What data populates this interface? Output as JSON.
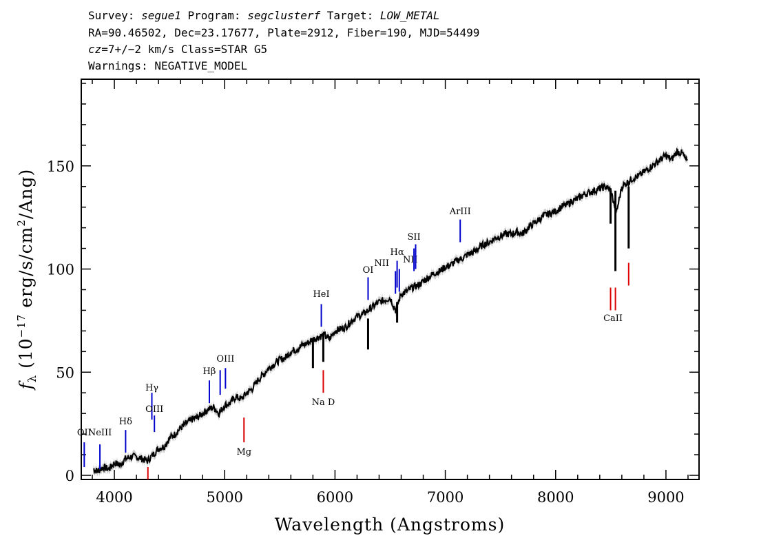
{
  "header": {
    "line1": {
      "pre1": "Survey: ",
      "survey": "segue1",
      "pre2": " Program: ",
      "program": "segclusterf",
      "pre3": " Target: ",
      "target": "LOW_METAL"
    },
    "line2": "RA=90.46502, Dec=23.17677, Plate=2912, Fiber=190, MJD=54499",
    "line3": {
      "cz": "cz",
      "rest": "=7+/−2 km/s Class=STAR G5"
    },
    "line4": "Warnings: NEGATIVE_MODEL"
  },
  "colors": {
    "emission": "#0000cc",
    "absorption": "#dd0000",
    "spectrum": "#000000",
    "error_band": "#aaaaaa"
  },
  "chart_data": {
    "type": "line",
    "xlabel": "Wavelength (Angstroms)",
    "ylabel_parts": {
      "f": "f",
      "sub": "λ",
      "mid": " (10",
      "exp": "−17",
      "unit": " erg/s/cm",
      "exp2": "2",
      "tail": "/Ang)"
    },
    "xlim": [
      3700,
      9300
    ],
    "ylim": [
      -2,
      192
    ],
    "x_ticks": [
      4000,
      5000,
      6000,
      7000,
      8000,
      9000
    ],
    "y_ticks": [
      0,
      50,
      100,
      150
    ],
    "series": [
      {
        "x": [
          3810,
          3850,
          3900,
          3950,
          4000,
          4050,
          4100,
          4150,
          4200,
          4250,
          4300,
          4350,
          4400,
          4450,
          4500,
          4550,
          4600,
          4650,
          4700,
          4750,
          4800,
          4850,
          4900,
          4950,
          5000,
          5050,
          5100,
          5150,
          5200,
          5250,
          5300,
          5350,
          5400,
          5450,
          5500,
          5550,
          5600,
          5650,
          5700,
          5750,
          5800,
          5850,
          5900,
          5950,
          6000,
          6050,
          6100,
          6150,
          6200,
          6250,
          6300,
          6350,
          6400,
          6450,
          6500,
          6550,
          6600,
          6650,
          6700,
          6750,
          6800,
          6850,
          6900,
          6950,
          7000,
          7050,
          7100,
          7150,
          7200,
          7250,
          7300,
          7350,
          7400,
          7450,
          7500,
          7550,
          7600,
          7650,
          7700,
          7750,
          7800,
          7850,
          7900,
          7950,
          8000,
          8050,
          8100,
          8150,
          8200,
          8250,
          8300,
          8350,
          8400,
          8450,
          8500,
          8550,
          8600,
          8650,
          8700,
          8750,
          8800,
          8850,
          8900,
          8950,
          9000,
          9050,
          9100,
          9150,
          9200
        ],
        "y": [
          3,
          2,
          4,
          3,
          6,
          5,
          8,
          9,
          9,
          8,
          7,
          10,
          13,
          14,
          18,
          20,
          23,
          25,
          27,
          28,
          30,
          32,
          33,
          30,
          34,
          35,
          38,
          37,
          40,
          42,
          46,
          49,
          52,
          54,
          56,
          57,
          60,
          61,
          63,
          64,
          66,
          67,
          68,
          66,
          70,
          71,
          72,
          75,
          77,
          78,
          80,
          82,
          84,
          85,
          86,
          80,
          88,
          89,
          91,
          92,
          94,
          96,
          98,
          99,
          101,
          102,
          104,
          105,
          107,
          108,
          110,
          112,
          113,
          115,
          116,
          117,
          117,
          118,
          117,
          120,
          122,
          124,
          126,
          127,
          128,
          130,
          131,
          133,
          134,
          136,
          137,
          138,
          139,
          140,
          138,
          127,
          140,
          142,
          144,
          145,
          147,
          149,
          151,
          153,
          155,
          153,
          157,
          156,
          151
        ]
      }
    ],
    "emission_lines": [
      {
        "label": "OII",
        "wave": 3727
      },
      {
        "label": "NeIII",
        "wave": 3869
      },
      {
        "label": "Hδ",
        "wave": 4102
      },
      {
        "label": "Hγ",
        "wave": 4340
      },
      {
        "label": "OIII",
        "wave": 4363
      },
      {
        "label": "Hβ",
        "wave": 4861
      },
      {
        "label": "OIII",
        "wave": 4959
      },
      {
        "label": "OIII",
        "wave": 5007
      },
      {
        "label": "HeI",
        "wave": 5876
      },
      {
        "label": "OI",
        "wave": 6300
      },
      {
        "label": "NII",
        "wave": 6548
      },
      {
        "label": "Hα",
        "wave": 6563
      },
      {
        "label": "NII",
        "wave": 6583
      },
      {
        "label": "SII",
        "wave": 6716
      },
      {
        "label": "SII",
        "wave": 6731
      },
      {
        "label": "ArIII",
        "wave": 7135
      }
    ],
    "absorption_lines": [
      {
        "label": "",
        "wave": 4304
      },
      {
        "label": "Mg",
        "wave": 5175
      },
      {
        "label": "Na D",
        "wave": 5894
      },
      {
        "label": "",
        "wave": 8498
      },
      {
        "label": "CaII",
        "wave": 8542
      },
      {
        "label": "",
        "wave": 8662
      }
    ]
  }
}
